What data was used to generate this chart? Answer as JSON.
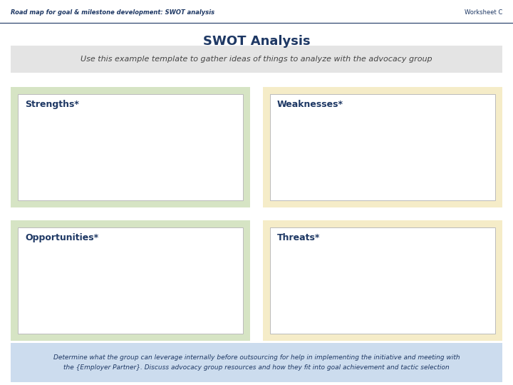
{
  "title": "SWOT Analysis",
  "subtitle": "Use this example template to gather ideas of things to analyze with the advocacy group",
  "header_left": "Road map for goal & milestone development: SWOT analysis",
  "header_right": "Worksheet C",
  "footer_text": "Determine what the group can leverage internally before outsourcing for help in implementing the initiative and meeting with\nthe {Employer Partner}. Discuss advocacy group resources and how they fit into goal achievement and tactic selection",
  "quadrants": [
    {
      "label": "Strengths*",
      "bg_outer": "#d6e4c4",
      "bg_inner": "#ffffff",
      "row": 0,
      "col": 0
    },
    {
      "label": "Weaknesses*",
      "bg_outer": "#f5ecc8",
      "bg_inner": "#ffffff",
      "row": 0,
      "col": 1
    },
    {
      "label": "Opportunities*",
      "bg_outer": "#d6e4c4",
      "bg_inner": "#ffffff",
      "row": 1,
      "col": 0
    },
    {
      "label": "Threats*",
      "bg_outer": "#f5ecc8",
      "bg_inner": "#ffffff",
      "row": 1,
      "col": 1
    }
  ],
  "title_color": "#1e3864",
  "header_color": "#1e3864",
  "label_color": "#1e3864",
  "subtitle_bg": "#e4e4e4",
  "subtitle_color": "#444444",
  "footer_bg": "#ccdcee",
  "footer_color": "#1e3864",
  "bg_color": "#ffffff",
  "sep_line_color": "#1e3864",
  "title_fontsize": 13,
  "header_fontsize": 6,
  "subtitle_fontsize": 8,
  "label_fontsize": 9,
  "footer_fontsize": 6.5
}
